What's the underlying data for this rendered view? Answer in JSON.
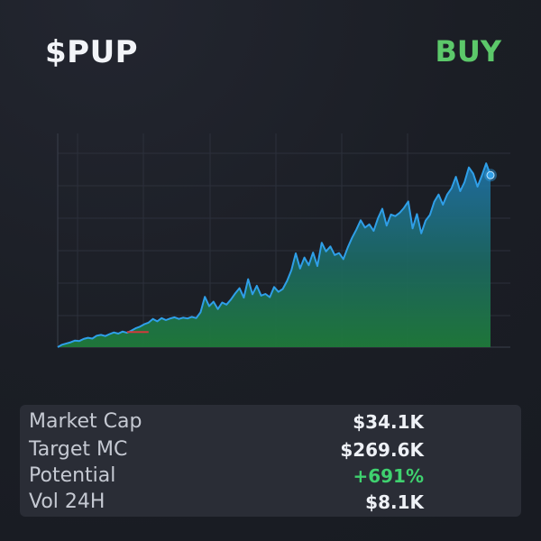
{
  "header": {
    "ticker": "$PUP",
    "signal": "BUY"
  },
  "colors": {
    "background": "#1b1e25",
    "signal": "#5cc86a",
    "line": "#2f9fe8",
    "positive": "#3fd16f",
    "loss_marker": "#d23b3b"
  },
  "chart_data": {
    "type": "area",
    "x": [
      0,
      1,
      2,
      3,
      4,
      5,
      6,
      7,
      8,
      9,
      10,
      11,
      12,
      13,
      14,
      15,
      16,
      17,
      18,
      19,
      20,
      21,
      22,
      23,
      24,
      25,
      26,
      27,
      28,
      29,
      30,
      31,
      32,
      33,
      34,
      35,
      36,
      37,
      38,
      39,
      40,
      41,
      42,
      43,
      44,
      45,
      46,
      47,
      48,
      49,
      50,
      51,
      52,
      53,
      54,
      55,
      56,
      57,
      58,
      59,
      60,
      61,
      62,
      63,
      64,
      65,
      66,
      67,
      68,
      69,
      70,
      71,
      72,
      73,
      74,
      75,
      76,
      77,
      78,
      79,
      80,
      81,
      82,
      83,
      84,
      85,
      86,
      87,
      88,
      89,
      90,
      91,
      92,
      93,
      94,
      95,
      96,
      97,
      98,
      99,
      100
    ],
    "values": [
      0.0,
      0.6,
      0.9,
      1.2,
      1.6,
      1.5,
      2.0,
      2.3,
      2.1,
      2.8,
      3.0,
      2.7,
      3.2,
      3.6,
      3.3,
      3.8,
      3.5,
      4.0,
      4.6,
      5.0,
      5.6,
      6.0,
      6.9,
      6.3,
      7.1,
      6.6,
      7.0,
      7.3,
      6.9,
      7.2,
      7.0,
      7.4,
      7.1,
      8.5,
      12.3,
      10.0,
      11.1,
      9.3,
      10.9,
      10.4,
      11.6,
      13.1,
      14.4,
      12.1,
      16.6,
      12.9,
      15.0,
      12.6,
      13.0,
      12.2,
      14.7,
      13.5,
      14.2,
      16.2,
      18.8,
      22.9,
      19.2,
      21.9,
      20.0,
      23.1,
      19.8,
      25.5,
      23.4,
      24.6,
      22.5,
      23.0,
      21.5,
      24.3,
      26.7,
      28.7,
      31.0,
      29.2,
      30.0,
      28.4,
      31.5,
      33.8,
      29.7,
      32.4,
      32.0,
      32.8,
      34.0,
      35.6,
      29.0,
      32.5,
      27.8,
      30.9,
      32.3,
      35.5,
      37.3,
      34.8,
      37.3,
      38.8,
      41.6,
      38.1,
      40.3,
      43.9,
      42.4,
      39.2,
      41.9,
      44.9,
      42.0
    ],
    "ylim": [
      0,
      50
    ],
    "grid": true,
    "end_marker": true
  },
  "stats": [
    {
      "label": "Market Cap",
      "value": "$34.1K"
    },
    {
      "label": "Target MC",
      "value": "$269.6K"
    },
    {
      "label": "Potential",
      "value": "+691%"
    },
    {
      "label": "Vol 24H",
      "value": "$8.1K"
    }
  ]
}
